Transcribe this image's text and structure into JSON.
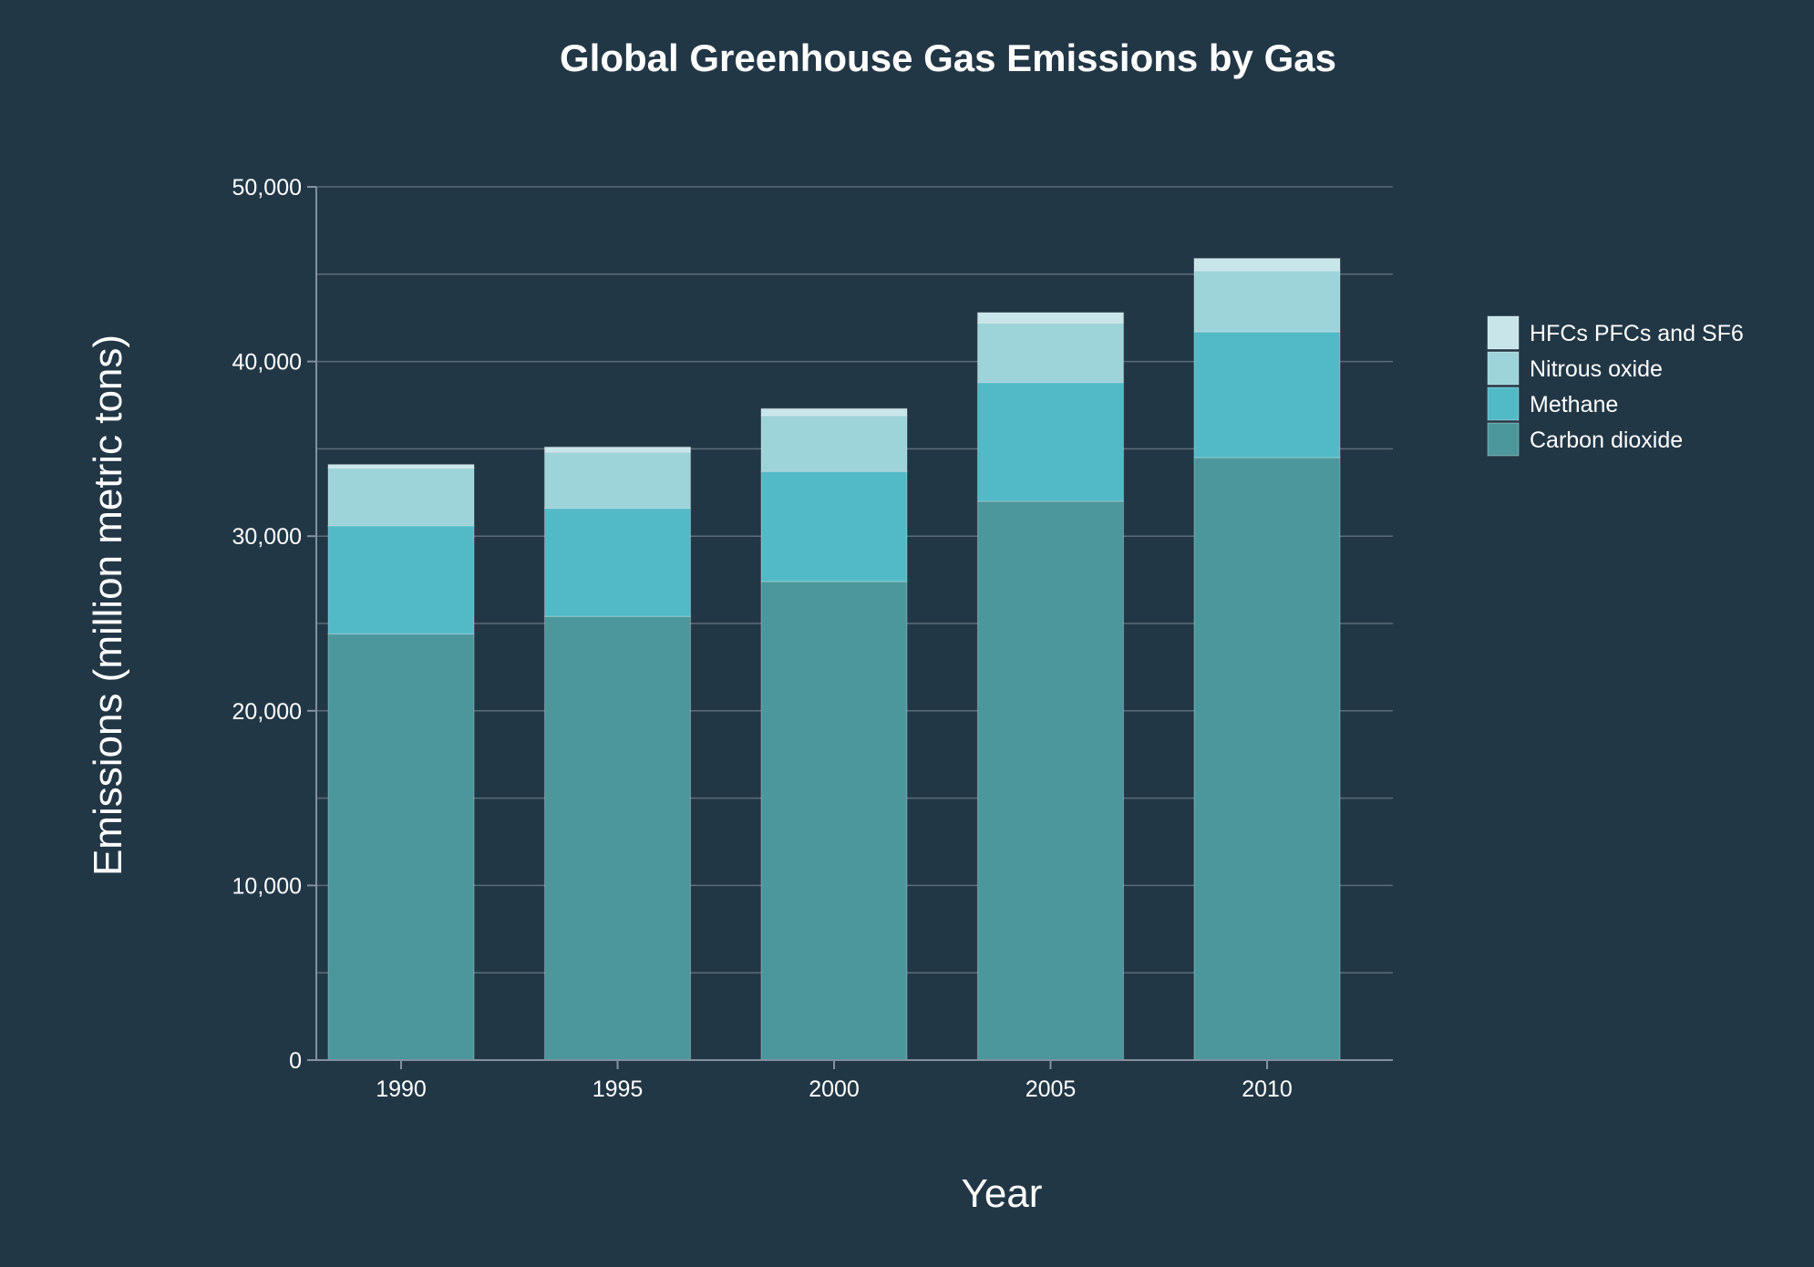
{
  "chart_data": {
    "type": "bar",
    "stacked": true,
    "title": "Global Greenhouse Gas Emissions by Gas",
    "xlabel": "Year",
    "ylabel": "Emissions (million metric tons)",
    "categories": [
      "1990",
      "1995",
      "2000",
      "2005",
      "2010"
    ],
    "series": [
      {
        "name": "Carbon dioxide",
        "color": "#4b979b",
        "values": [
          24400,
          25400,
          27400,
          32000,
          34500
        ]
      },
      {
        "name": "Methane",
        "color": "#52bac7",
        "values": [
          6200,
          6200,
          6300,
          6800,
          7200
        ]
      },
      {
        "name": "Nitrous oxide",
        "color": "#9dd4da",
        "values": [
          3300,
          3200,
          3200,
          3400,
          3500
        ]
      },
      {
        "name": "HFCs PFCs and SF6",
        "color": "#c8e5ea",
        "values": [
          200,
          300,
          400,
          600,
          700
        ]
      }
    ],
    "ylim": [
      0,
      50000
    ],
    "yticks": [
      0,
      10000,
      20000,
      30000,
      40000,
      50000
    ],
    "ytick_labels": [
      "0",
      "10,000",
      "20,000",
      "30,000",
      "40,000",
      "50,000"
    ],
    "grid": true,
    "legend_placement": "right",
    "legend_order": [
      "HFCs PFCs and SF6",
      "Nitrous oxide",
      "Methane",
      "Carbon dioxide"
    ]
  },
  "colors": {
    "background": "#223746",
    "text": "#ffffff"
  }
}
